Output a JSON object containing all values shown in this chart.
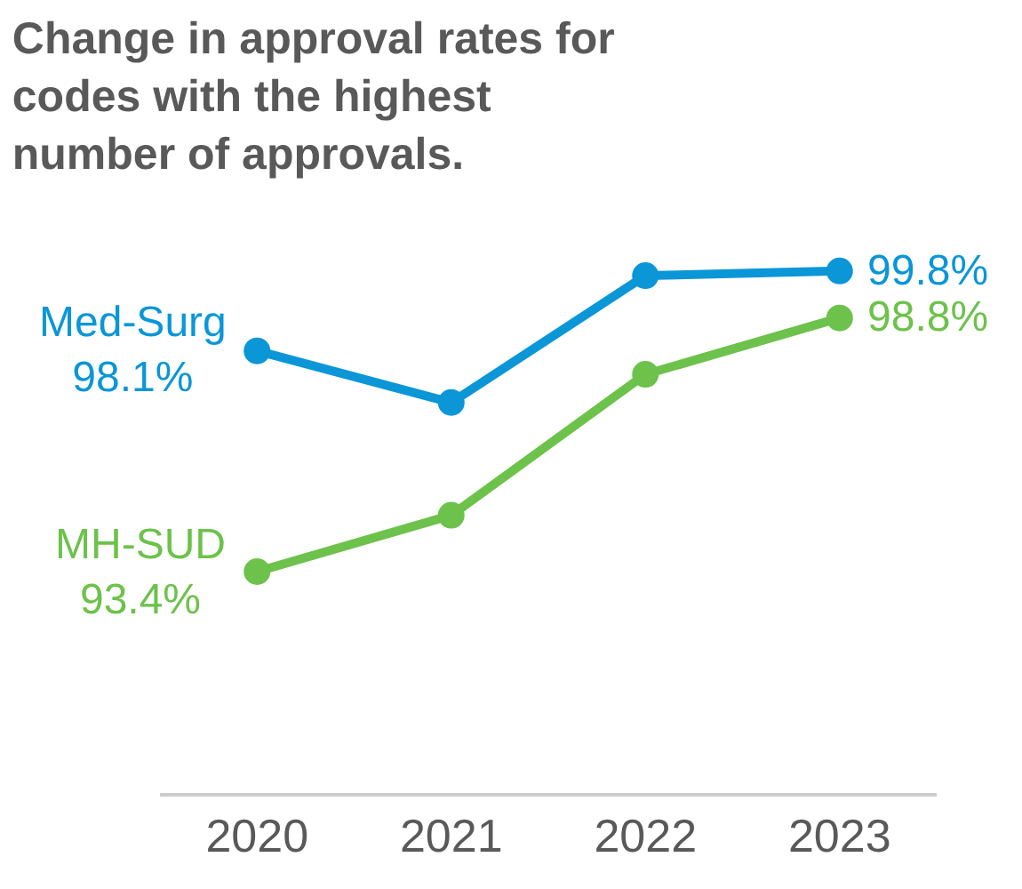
{
  "chart_data": {
    "type": "line",
    "title": "Change in approval rates for codes with the highest number of approvals.",
    "categories": [
      "2020",
      "2021",
      "2022",
      "2023"
    ],
    "series": [
      {
        "name": "Med-Surg",
        "color": "#0a96d7",
        "values": [
          98.1,
          97.0,
          99.7,
          99.8
        ],
        "value_labels": [
          "98.1%",
          null,
          null,
          "99.8%"
        ]
      },
      {
        "name": "MH-SUD",
        "color": "#6cc24a",
        "values": [
          93.4,
          94.6,
          97.6,
          98.8
        ],
        "value_labels": [
          "93.4%",
          null,
          null,
          "98.8%"
        ]
      }
    ],
    "tick_labels": "x",
    "legend": false,
    "marker": "circle",
    "line_style": "solid"
  }
}
